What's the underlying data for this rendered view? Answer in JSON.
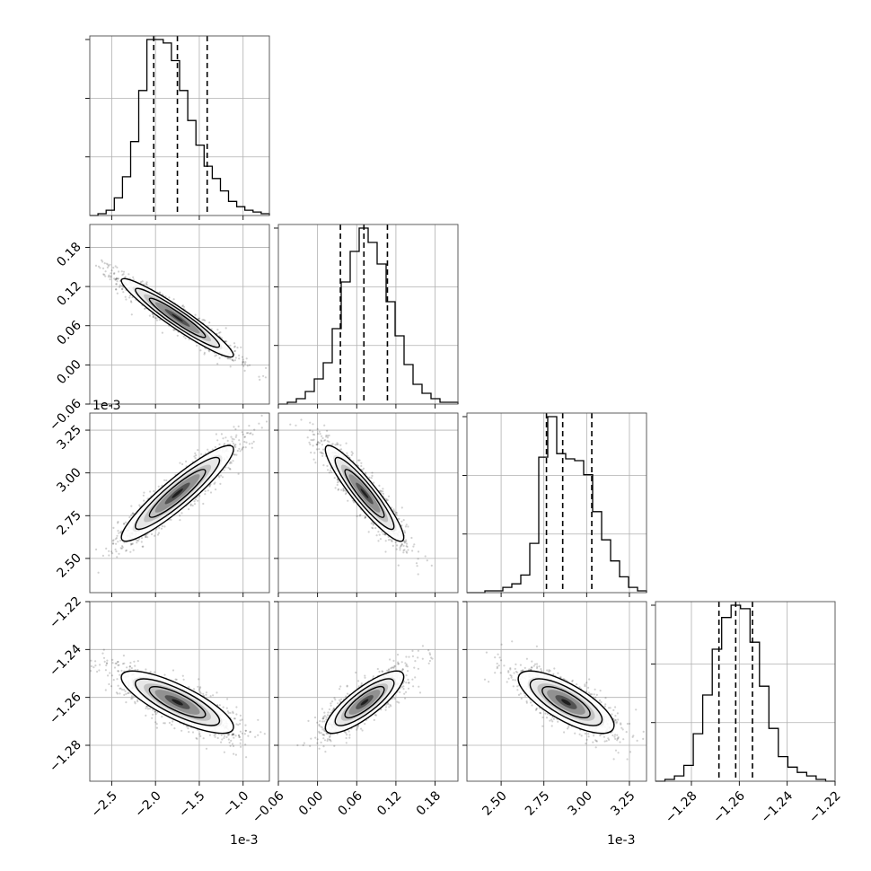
{
  "chart_data": {
    "type": "corner",
    "description_style": "corner plot of 4 parameters: 1D histograms on diagonal with dashed quantile lines, 2D histograms with contours and scatter points below diagonal",
    "grid": true,
    "offset_labels": {
      "p0": "1e-3",
      "p2": "1e-3"
    },
    "params": [
      {
        "range": [
          -2.75,
          -0.7
        ],
        "ticks": [
          -2.5,
          -2.0,
          -1.5,
          -1.0
        ],
        "tick_labels": [
          "−2.5",
          "−2.0",
          "−1.5",
          "−1.0"
        ],
        "mean": -1.75,
        "sd": 0.32,
        "quantiles": [
          -2.02,
          -1.75,
          -1.41
        ],
        "hist": [
          0,
          1,
          3,
          10,
          22,
          42,
          71,
          100,
          100,
          98,
          88,
          71,
          54,
          40,
          28,
          21,
          14,
          8,
          5,
          3,
          2,
          1
        ]
      },
      {
        "range": [
          -0.06,
          0.215
        ],
        "ticks": [
          -0.06,
          0.0,
          0.06,
          0.12,
          0.18
        ],
        "tick_labels": [
          "−0.06",
          "0.00",
          "0.06",
          "0.12",
          "0.18"
        ],
        "mean": 0.072,
        "sd": 0.03,
        "quantiles": [
          0.035,
          0.071,
          0.107
        ],
        "hist": [
          0,
          1,
          3,
          7,
          14,
          23,
          42,
          68,
          85,
          98,
          90,
          78,
          57,
          38,
          22,
          11,
          6,
          3,
          1,
          1
        ]
      },
      {
        "range": [
          2.3,
          3.35
        ],
        "ticks": [
          2.5,
          2.75,
          3.0,
          3.25
        ],
        "tick_labels": [
          "2.50",
          "2.75",
          "3.00",
          "3.25"
        ],
        "mean": 2.88,
        "sd": 0.14,
        "quantiles": [
          2.765,
          2.86,
          3.03
        ],
        "hist": [
          0,
          0,
          1,
          1,
          3,
          5,
          10,
          28,
          77,
          100,
          79,
          76,
          75,
          67,
          46,
          30,
          18,
          9,
          3,
          1
        ]
      },
      {
        "range": [
          -1.295,
          -1.22
        ],
        "ticks": [
          -1.28,
          -1.26,
          -1.24,
          -1.22
        ],
        "tick_labels": [
          "−1.28",
          "−1.26",
          "−1.24",
          "−1.22"
        ],
        "mean": -1.262,
        "sd": 0.0065,
        "quantiles": [
          -1.2685,
          -1.2615,
          -1.2545
        ],
        "hist": [
          0,
          1,
          3,
          9,
          27,
          49,
          75,
          93,
          100,
          98,
          79,
          54,
          30,
          14,
          8,
          5,
          3,
          1,
          0
        ]
      }
    ],
    "correlations": [
      {
        "pair": [
          0,
          1
        ],
        "rho": -0.95
      },
      {
        "pair": [
          0,
          2
        ],
        "rho": 0.92
      },
      {
        "pair": [
          1,
          2
        ],
        "rho": -0.92
      },
      {
        "pair": [
          0,
          3
        ],
        "rho": -0.8
      },
      {
        "pair": [
          1,
          3
        ],
        "rho": 0.82
      },
      {
        "pair": [
          2,
          3
        ],
        "rho": -0.75
      }
    ]
  }
}
